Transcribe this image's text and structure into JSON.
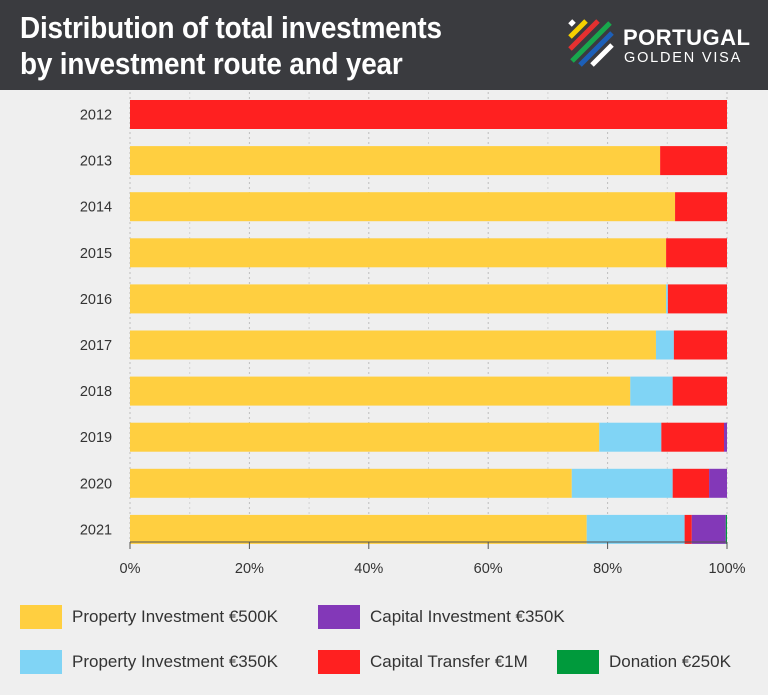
{
  "title": {
    "line1": "Distribution of total investments",
    "line2": "by investment route and year"
  },
  "logo": {
    "line1": "PORTUGAL",
    "line2": "GOLDEN VISA"
  },
  "colors": {
    "header_bg": "#3a3b3f",
    "plot_bg": "#efefef",
    "property_500k": "#ffcf40",
    "property_350k": "#80d4f5",
    "capital_1m": "#ff2020",
    "capital_350k": "#8338b8",
    "donation_250k": "#009a3c"
  },
  "chart_data": {
    "type": "bar",
    "orientation": "horizontal",
    "stacked": true,
    "categories": [
      "2012",
      "2013",
      "2014",
      "2015",
      "2016",
      "2017",
      "2018",
      "2019",
      "2020",
      "2021"
    ],
    "xlim": [
      0,
      100
    ],
    "x_ticks": [
      "0%",
      "20%",
      "40%",
      "60%",
      "80%",
      "100%"
    ],
    "grid": "vertical dotted",
    "legend_position": "bottom",
    "series": [
      {
        "name": "Property Investment €500K",
        "color": "#ffcf40",
        "values": [
          0,
          88.8,
          91.3,
          89.8,
          89.8,
          88.1,
          83.8,
          78.6,
          74.0,
          76.5
        ]
      },
      {
        "name": "Property Investment €350K",
        "color": "#80d4f5",
        "values": [
          0,
          0,
          0,
          0,
          0.3,
          3.0,
          7.1,
          10.4,
          16.9,
          16.4
        ]
      },
      {
        "name": "Capital Transfer €1M",
        "color": "#ff2020",
        "values": [
          100,
          11.2,
          8.7,
          10.2,
          9.9,
          8.9,
          9.1,
          10.5,
          6.1,
          1.2
        ]
      },
      {
        "name": "Capital Investment €350K",
        "color": "#8338b8",
        "values": [
          0,
          0,
          0,
          0,
          0,
          0,
          0,
          0.5,
          3.0,
          5.7
        ]
      },
      {
        "name": "Donation €250K",
        "color": "#009a3c",
        "values": [
          0,
          0,
          0,
          0,
          0,
          0,
          0,
          0,
          0,
          0.2
        ]
      }
    ]
  },
  "legend": [
    {
      "label": "Property Investment €500K",
      "color": "#ffcf40"
    },
    {
      "label": "Capital Investment €350K",
      "color": "#8338b8"
    },
    {
      "label": "Property Investment €350K",
      "color": "#80d4f5"
    },
    {
      "label": "Capital Transfer €1M",
      "color": "#ff2020"
    },
    {
      "label": "Donation €250K",
      "color": "#009a3c"
    }
  ]
}
